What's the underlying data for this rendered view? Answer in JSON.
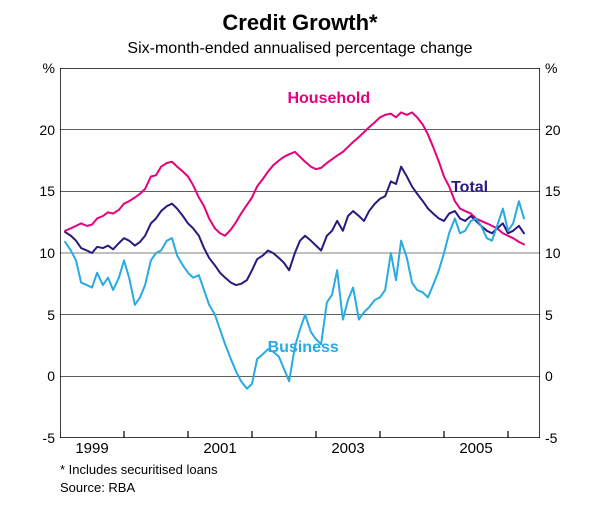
{
  "chart": {
    "type": "line",
    "title": "Credit Growth*",
    "title_fontsize": 22,
    "subtitle": "Six-month-ended annualised percentage change",
    "subtitle_fontsize": 16,
    "background_color": "#ffffff",
    "grid_color": "#000000",
    "grid_width": 0.6,
    "border_color": "#000000",
    "border_width": 1.5,
    "x": {
      "min": 1998.0,
      "max": 2005.5,
      "ticks_major": [
        1999,
        2001,
        2003,
        2005
      ],
      "ticks_minor": [
        1998,
        2000,
        2002,
        2004
      ],
      "labels": [
        "1999",
        "2001",
        "2003",
        "2005"
      ],
      "label_fontsize": 15
    },
    "y": {
      "min": -5,
      "max": 25,
      "ticks": [
        -5,
        0,
        5,
        10,
        15,
        20
      ],
      "tick_labels": [
        "-5",
        "0",
        "5",
        "10",
        "15",
        "20"
      ],
      "unit": "%",
      "label_fontsize": 14
    },
    "series": [
      {
        "name": "Household",
        "label": "Household",
        "color": "#e6007e",
        "width": 2,
        "label_pos": {
          "x": 2002.2,
          "y": 22.5
        },
        "label_fontsize": 16,
        "data": [
          [
            1998.08,
            11.8
          ],
          [
            1998.17,
            12.0
          ],
          [
            1998.25,
            12.2
          ],
          [
            1998.33,
            12.4
          ],
          [
            1998.42,
            12.2
          ],
          [
            1998.5,
            12.3
          ],
          [
            1998.58,
            12.8
          ],
          [
            1998.67,
            13.0
          ],
          [
            1998.75,
            13.3
          ],
          [
            1998.83,
            13.2
          ],
          [
            1998.92,
            13.5
          ],
          [
            1999.0,
            14.0
          ],
          [
            1999.08,
            14.2
          ],
          [
            1999.17,
            14.5
          ],
          [
            1999.25,
            14.8
          ],
          [
            1999.33,
            15.2
          ],
          [
            1999.42,
            16.2
          ],
          [
            1999.5,
            16.3
          ],
          [
            1999.58,
            17.0
          ],
          [
            1999.67,
            17.3
          ],
          [
            1999.75,
            17.4
          ],
          [
            1999.83,
            17.0
          ],
          [
            1999.92,
            16.6
          ],
          [
            2000.0,
            16.2
          ],
          [
            2000.08,
            15.5
          ],
          [
            2000.17,
            14.5
          ],
          [
            2000.25,
            13.8
          ],
          [
            2000.33,
            12.8
          ],
          [
            2000.42,
            12.0
          ],
          [
            2000.5,
            11.6
          ],
          [
            2000.58,
            11.4
          ],
          [
            2000.67,
            11.9
          ],
          [
            2000.75,
            12.5
          ],
          [
            2000.83,
            13.2
          ],
          [
            2000.92,
            13.9
          ],
          [
            2001.0,
            14.5
          ],
          [
            2001.08,
            15.4
          ],
          [
            2001.17,
            16.0
          ],
          [
            2001.25,
            16.6
          ],
          [
            2001.33,
            17.1
          ],
          [
            2001.42,
            17.5
          ],
          [
            2001.5,
            17.8
          ],
          [
            2001.58,
            18.0
          ],
          [
            2001.67,
            18.2
          ],
          [
            2001.75,
            17.8
          ],
          [
            2001.83,
            17.4
          ],
          [
            2001.92,
            17.0
          ],
          [
            2002.0,
            16.8
          ],
          [
            2002.08,
            16.9
          ],
          [
            2002.17,
            17.3
          ],
          [
            2002.25,
            17.6
          ],
          [
            2002.33,
            17.9
          ],
          [
            2002.42,
            18.2
          ],
          [
            2002.5,
            18.6
          ],
          [
            2002.58,
            19.0
          ],
          [
            2002.67,
            19.4
          ],
          [
            2002.75,
            19.8
          ],
          [
            2002.83,
            20.2
          ],
          [
            2002.92,
            20.6
          ],
          [
            2003.0,
            21.0
          ],
          [
            2003.08,
            21.2
          ],
          [
            2003.17,
            21.3
          ],
          [
            2003.25,
            21.0
          ],
          [
            2003.33,
            21.4
          ],
          [
            2003.42,
            21.2
          ],
          [
            2003.5,
            21.4
          ],
          [
            2003.58,
            21.0
          ],
          [
            2003.67,
            20.4
          ],
          [
            2003.75,
            19.6
          ],
          [
            2003.83,
            18.6
          ],
          [
            2003.92,
            17.4
          ],
          [
            2004.0,
            16.2
          ],
          [
            2004.08,
            15.4
          ],
          [
            2004.17,
            14.2
          ],
          [
            2004.25,
            13.6
          ],
          [
            2004.33,
            13.4
          ],
          [
            2004.42,
            13.2
          ],
          [
            2004.5,
            12.8
          ],
          [
            2004.58,
            12.6
          ],
          [
            2004.67,
            12.4
          ],
          [
            2004.75,
            12.2
          ],
          [
            2004.83,
            12.0
          ],
          [
            2004.92,
            11.6
          ],
          [
            2005.0,
            11.4
          ],
          [
            2005.08,
            11.2
          ],
          [
            2005.17,
            10.9
          ],
          [
            2005.25,
            10.7
          ]
        ]
      },
      {
        "name": "Total",
        "label": "Total",
        "color": "#2a1a80",
        "width": 2,
        "label_pos": {
          "x": 2004.4,
          "y": 15.3
        },
        "label_fontsize": 16,
        "data": [
          [
            1998.08,
            11.7
          ],
          [
            1998.17,
            11.4
          ],
          [
            1998.25,
            11.0
          ],
          [
            1998.33,
            10.4
          ],
          [
            1998.42,
            10.2
          ],
          [
            1998.5,
            10.0
          ],
          [
            1998.58,
            10.5
          ],
          [
            1998.67,
            10.4
          ],
          [
            1998.75,
            10.6
          ],
          [
            1998.83,
            10.3
          ],
          [
            1998.92,
            10.8
          ],
          [
            1999.0,
            11.2
          ],
          [
            1999.08,
            11.0
          ],
          [
            1999.17,
            10.6
          ],
          [
            1999.25,
            10.9
          ],
          [
            1999.33,
            11.4
          ],
          [
            1999.42,
            12.4
          ],
          [
            1999.5,
            12.8
          ],
          [
            1999.58,
            13.4
          ],
          [
            1999.67,
            13.8
          ],
          [
            1999.75,
            14.0
          ],
          [
            1999.83,
            13.6
          ],
          [
            1999.92,
            13.0
          ],
          [
            2000.0,
            12.4
          ],
          [
            2000.08,
            12.0
          ],
          [
            2000.17,
            11.4
          ],
          [
            2000.25,
            10.4
          ],
          [
            2000.33,
            9.6
          ],
          [
            2000.42,
            9.0
          ],
          [
            2000.5,
            8.4
          ],
          [
            2000.58,
            8.0
          ],
          [
            2000.67,
            7.6
          ],
          [
            2000.75,
            7.4
          ],
          [
            2000.83,
            7.5
          ],
          [
            2000.92,
            7.8
          ],
          [
            2001.0,
            8.6
          ],
          [
            2001.08,
            9.5
          ],
          [
            2001.17,
            9.8
          ],
          [
            2001.25,
            10.2
          ],
          [
            2001.33,
            10.0
          ],
          [
            2001.42,
            9.6
          ],
          [
            2001.5,
            9.2
          ],
          [
            2001.58,
            8.6
          ],
          [
            2001.67,
            10.0
          ],
          [
            2001.75,
            11.0
          ],
          [
            2001.83,
            11.4
          ],
          [
            2001.92,
            11.0
          ],
          [
            2002.0,
            10.6
          ],
          [
            2002.08,
            10.2
          ],
          [
            2002.17,
            11.4
          ],
          [
            2002.25,
            11.8
          ],
          [
            2002.33,
            12.6
          ],
          [
            2002.42,
            11.8
          ],
          [
            2002.5,
            13.0
          ],
          [
            2002.58,
            13.4
          ],
          [
            2002.67,
            13.0
          ],
          [
            2002.75,
            12.6
          ],
          [
            2002.83,
            13.4
          ],
          [
            2002.92,
            14.0
          ],
          [
            2003.0,
            14.4
          ],
          [
            2003.08,
            14.6
          ],
          [
            2003.17,
            15.8
          ],
          [
            2003.25,
            15.6
          ],
          [
            2003.33,
            17.0
          ],
          [
            2003.42,
            16.2
          ],
          [
            2003.5,
            15.4
          ],
          [
            2003.58,
            14.8
          ],
          [
            2003.67,
            14.2
          ],
          [
            2003.75,
            13.6
          ],
          [
            2003.83,
            13.2
          ],
          [
            2003.92,
            12.8
          ],
          [
            2004.0,
            12.6
          ],
          [
            2004.08,
            13.2
          ],
          [
            2004.17,
            13.4
          ],
          [
            2004.25,
            12.8
          ],
          [
            2004.33,
            12.6
          ],
          [
            2004.42,
            13.0
          ],
          [
            2004.5,
            12.6
          ],
          [
            2004.58,
            12.2
          ],
          [
            2004.67,
            11.8
          ],
          [
            2004.75,
            11.6
          ],
          [
            2004.83,
            12.0
          ],
          [
            2004.92,
            12.4
          ],
          [
            2005.0,
            11.6
          ],
          [
            2005.08,
            11.8
          ],
          [
            2005.17,
            12.2
          ],
          [
            2005.25,
            11.6
          ]
        ]
      },
      {
        "name": "Business",
        "label": "Business",
        "color": "#29aae1",
        "width": 2,
        "label_pos": {
          "x": 2001.8,
          "y": 2.3
        },
        "label_fontsize": 16,
        "data": [
          [
            1998.08,
            10.9
          ],
          [
            1998.17,
            10.2
          ],
          [
            1998.25,
            9.4
          ],
          [
            1998.33,
            7.6
          ],
          [
            1998.42,
            7.4
          ],
          [
            1998.5,
            7.2
          ],
          [
            1998.58,
            8.4
          ],
          [
            1998.67,
            7.4
          ],
          [
            1998.75,
            8.0
          ],
          [
            1998.83,
            7.0
          ],
          [
            1998.92,
            8.0
          ],
          [
            1999.0,
            9.4
          ],
          [
            1999.08,
            8.0
          ],
          [
            1999.17,
            5.8
          ],
          [
            1999.25,
            6.4
          ],
          [
            1999.33,
            7.4
          ],
          [
            1999.42,
            9.4
          ],
          [
            1999.5,
            10.0
          ],
          [
            1999.58,
            10.2
          ],
          [
            1999.67,
            11.0
          ],
          [
            1999.75,
            11.2
          ],
          [
            1999.83,
            9.8
          ],
          [
            1999.92,
            9.0
          ],
          [
            2000.0,
            8.4
          ],
          [
            2000.08,
            8.0
          ],
          [
            2000.17,
            8.2
          ],
          [
            2000.25,
            7.0
          ],
          [
            2000.33,
            5.8
          ],
          [
            2000.42,
            5.0
          ],
          [
            2000.5,
            3.8
          ],
          [
            2000.58,
            2.6
          ],
          [
            2000.67,
            1.4
          ],
          [
            2000.75,
            0.4
          ],
          [
            2000.83,
            -0.4
          ],
          [
            2000.92,
            -1.0
          ],
          [
            2001.0,
            -0.6
          ],
          [
            2001.08,
            1.4
          ],
          [
            2001.17,
            1.8
          ],
          [
            2001.25,
            2.2
          ],
          [
            2001.33,
            2.0
          ],
          [
            2001.42,
            1.6
          ],
          [
            2001.5,
            0.6
          ],
          [
            2001.58,
            -0.4
          ],
          [
            2001.67,
            2.4
          ],
          [
            2001.75,
            3.8
          ],
          [
            2001.83,
            5.0
          ],
          [
            2001.92,
            3.6
          ],
          [
            2002.0,
            3.0
          ],
          [
            2002.08,
            2.6
          ],
          [
            2002.17,
            6.0
          ],
          [
            2002.25,
            6.6
          ],
          [
            2002.33,
            8.6
          ],
          [
            2002.42,
            4.6
          ],
          [
            2002.5,
            6.2
          ],
          [
            2002.58,
            7.2
          ],
          [
            2002.67,
            4.6
          ],
          [
            2002.75,
            5.2
          ],
          [
            2002.83,
            5.6
          ],
          [
            2002.92,
            6.2
          ],
          [
            2003.0,
            6.4
          ],
          [
            2003.08,
            7.0
          ],
          [
            2003.17,
            10.0
          ],
          [
            2003.25,
            7.8
          ],
          [
            2003.33,
            11.0
          ],
          [
            2003.42,
            9.6
          ],
          [
            2003.5,
            7.6
          ],
          [
            2003.58,
            7.0
          ],
          [
            2003.67,
            6.8
          ],
          [
            2003.75,
            6.4
          ],
          [
            2003.83,
            7.4
          ],
          [
            2003.92,
            8.6
          ],
          [
            2004.0,
            10.0
          ],
          [
            2004.08,
            11.6
          ],
          [
            2004.17,
            12.8
          ],
          [
            2004.25,
            11.6
          ],
          [
            2004.33,
            11.8
          ],
          [
            2004.42,
            12.6
          ],
          [
            2004.5,
            12.8
          ],
          [
            2004.58,
            12.2
          ],
          [
            2004.67,
            11.2
          ],
          [
            2004.75,
            11.0
          ],
          [
            2004.83,
            12.2
          ],
          [
            2004.92,
            13.6
          ],
          [
            2005.0,
            11.8
          ],
          [
            2005.08,
            12.4
          ],
          [
            2005.17,
            14.2
          ],
          [
            2005.25,
            12.8
          ]
        ]
      }
    ],
    "footnotes": [
      "* Includes securitised loans",
      "Source: RBA"
    ]
  }
}
